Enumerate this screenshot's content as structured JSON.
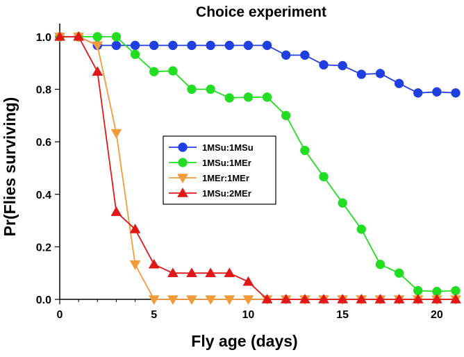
{
  "chart_data": {
    "type": "line",
    "title": "Choice experiment",
    "xlabel": "Fly age (days)",
    "ylabel": "Pr(Flies surviving)",
    "xlim": [
      0,
      21
    ],
    "ylim": [
      0,
      1.05
    ],
    "xticks": [
      0,
      5,
      10,
      15,
      20
    ],
    "yticks": [
      0.0,
      0.2,
      0.4,
      0.6,
      0.8,
      1.0
    ],
    "xtick_labels": [
      "0",
      "5",
      "10",
      "15",
      "20"
    ],
    "ytick_labels": [
      "0.0",
      "0.2",
      "0.4",
      "0.6",
      "0.8",
      "1.0"
    ],
    "legend_position": "center",
    "grid": false,
    "series": [
      {
        "name": "1MSu:1MSu",
        "color": "#1f3fe0",
        "marker": "circle",
        "x": [
          0,
          1,
          2,
          3,
          4,
          5,
          6,
          7,
          8,
          9,
          10,
          11,
          12,
          13,
          14,
          15,
          16,
          17,
          18,
          19,
          20,
          21
        ],
        "y": [
          1.0,
          1.0,
          0.967,
          0.967,
          0.967,
          0.967,
          0.967,
          0.967,
          0.967,
          0.967,
          0.967,
          0.967,
          0.93,
          0.93,
          0.893,
          0.89,
          0.857,
          0.86,
          0.822,
          0.786,
          0.79,
          0.786
        ]
      },
      {
        "name": "1MSu:1MEr",
        "color": "#22dd22",
        "marker": "circle",
        "x": [
          0,
          1,
          2,
          3,
          4,
          5,
          6,
          7,
          8,
          9,
          10,
          11,
          12,
          13,
          14,
          15,
          16,
          17,
          18,
          19,
          20,
          21
        ],
        "y": [
          1.0,
          1.0,
          1.0,
          1.0,
          0.933,
          0.867,
          0.87,
          0.8,
          0.8,
          0.767,
          0.77,
          0.77,
          0.7,
          0.567,
          0.467,
          0.367,
          0.267,
          0.133,
          0.1,
          0.033,
          0.03,
          0.033
        ]
      },
      {
        "name": "1MEr:1MEr",
        "color": "#f39a3a",
        "marker": "triangle-down",
        "x": [
          0,
          1,
          2,
          3,
          4,
          5,
          6,
          7,
          8,
          9,
          10,
          11,
          12,
          13,
          14,
          15,
          16,
          17,
          18,
          19,
          20,
          21
        ],
        "y": [
          1.0,
          1.0,
          0.967,
          0.633,
          0.133,
          0.0,
          0.0,
          0.0,
          0.0,
          0.0,
          0.0,
          0.0,
          0.0,
          0.0,
          0.0,
          0.0,
          0.0,
          0.0,
          0.0,
          0.0,
          0.0,
          0.0
        ]
      },
      {
        "name": "1MSu:2MEr",
        "color": "#e01818",
        "marker": "triangle-up",
        "x": [
          0,
          1,
          2,
          3,
          4,
          5,
          6,
          7,
          8,
          9,
          10,
          11,
          12,
          13,
          14,
          15,
          16,
          17,
          18,
          19,
          20,
          21
        ],
        "y": [
          1.0,
          1.0,
          0.867,
          0.333,
          0.267,
          0.133,
          0.1,
          0.1,
          0.1,
          0.1,
          0.067,
          0.0,
          0.0,
          0.0,
          0.0,
          0.0,
          0.0,
          0.0,
          0.0,
          0.0,
          0.0,
          0.0
        ]
      }
    ]
  }
}
